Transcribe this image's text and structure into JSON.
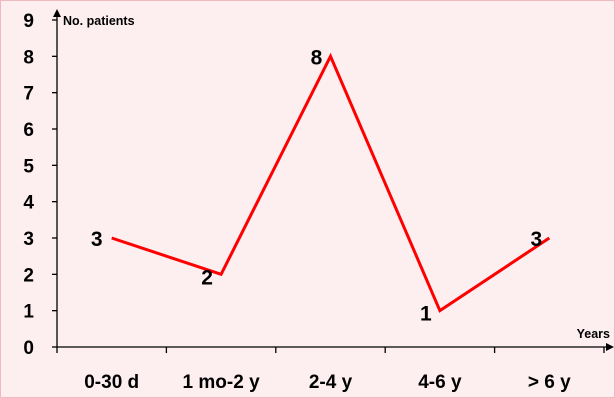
{
  "chart_data": {
    "type": "line",
    "title": "",
    "xlabel": "Years",
    "ylabel": "No. patients",
    "ylim": [
      0,
      9
    ],
    "yticks": [
      0,
      1,
      2,
      3,
      4,
      5,
      6,
      7,
      8,
      9
    ],
    "categories": [
      "0-30 d",
      "1 mo-2 y",
      "2-4 y",
      "4-6 y",
      "> 6 y"
    ],
    "series": [
      {
        "values": [
          3,
          2,
          8,
          1,
          3
        ],
        "color": "#ff0000",
        "data_labels": [
          "3",
          "2",
          "8",
          "1",
          "3"
        ]
      }
    ],
    "grid": false,
    "legend": "none",
    "background": "#fdeef0",
    "border_color": "#f0b9c0"
  }
}
